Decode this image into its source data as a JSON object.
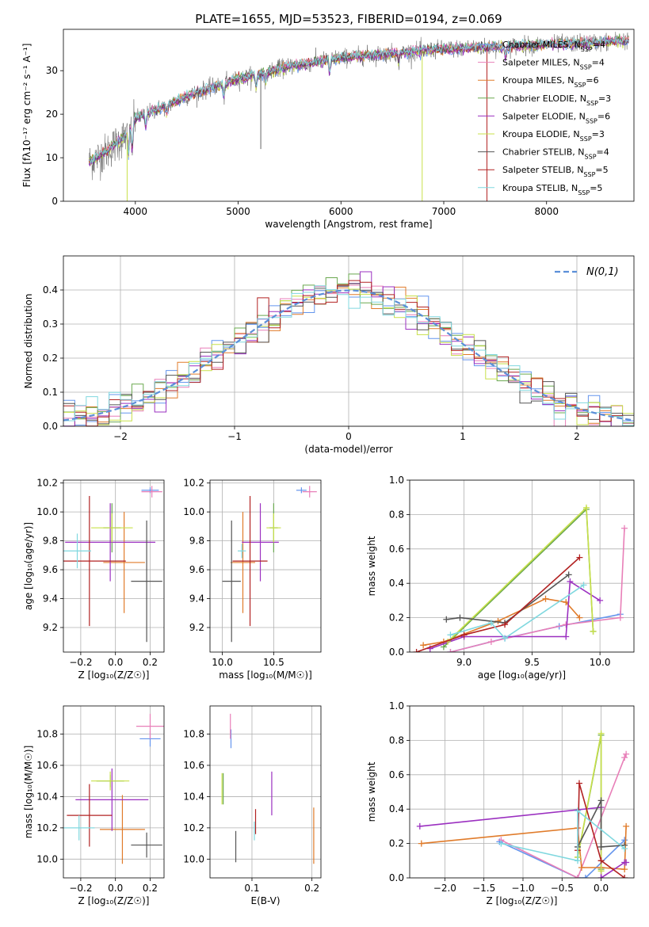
{
  "figure_title": "PLATE=1655, MJD=53523, FIBERID=0194, z=0.069",
  "colors": {
    "Chabrier MILES": "#6495ed",
    "Salpeter MILES": "#e87fb8",
    "Kroupa MILES": "#e07b2a",
    "Chabrier ELODIE": "#6aa84f",
    "Salpeter ELODIE": "#9b30c0",
    "Kroupa ELODIE": "#c8e04a",
    "Chabrier STELIB": "#555555",
    "Salpeter STELIB": "#b22222",
    "Kroupa STELIB": "#80d8df",
    "gaussian": "#5b8fd8"
  },
  "chart_data": [
    {
      "id": "spectrum",
      "type": "line",
      "xlabel": "wavelength [Angstrom, rest frame]",
      "ylabel": "Flux [fλ10⁻¹⁷ erg cm⁻² s⁻¹ A⁻¹]",
      "xlim": [
        3300,
        8850
      ],
      "ylim": [
        0,
        39.5
      ],
      "xticks": [
        "4000",
        "5000",
        "6000",
        "7000",
        "8000"
      ],
      "yticks": [
        "0",
        "10",
        "20",
        "30"
      ],
      "legend": "top-right",
      "legend_entries": [
        {
          "model": "Chabrier MILES",
          "nssp": "4"
        },
        {
          "model": "Salpeter MILES",
          "nssp": "4"
        },
        {
          "model": "Kroupa MILES",
          "nssp": "6"
        },
        {
          "model": "Chabrier ELODIE",
          "nssp": "3"
        },
        {
          "model": "Salpeter ELODIE",
          "nssp": "6"
        },
        {
          "model": "Kroupa ELODIE",
          "nssp": "3"
        },
        {
          "model": "Chabrier STELIB",
          "nssp": "4"
        },
        {
          "model": "Salpeter STELIB",
          "nssp": "5"
        },
        {
          "model": "Kroupa STELIB",
          "nssp": "5"
        }
      ],
      "continuum": [
        [
          3550,
          9
        ],
        [
          3700,
          11
        ],
        [
          3900,
          15
        ],
        [
          4000,
          19
        ],
        [
          4300,
          22
        ],
        [
          4600,
          25
        ],
        [
          5000,
          28
        ],
        [
          5500,
          31
        ],
        [
          6000,
          33
        ],
        [
          6500,
          34
        ],
        [
          7000,
          35
        ],
        [
          7500,
          35.5
        ],
        [
          8000,
          36
        ],
        [
          8500,
          36.5
        ],
        [
          8800,
          37
        ]
      ]
    },
    {
      "id": "residuals",
      "type": "histogram",
      "xlabel": "(data-model)/error",
      "ylabel": "Normed distribution",
      "xlim": [
        -2.5,
        2.5
      ],
      "ylim": [
        0,
        0.5
      ],
      "xticks": [
        "−2",
        "−1",
        "0",
        "1",
        "2"
      ],
      "yticks": [
        "0.0",
        "0.1",
        "0.2",
        "0.3",
        "0.4"
      ],
      "legend": "top-right",
      "gaussian_label": "N(0,1)",
      "grid": true
    },
    {
      "id": "age_vs_Z",
      "type": "scatter",
      "xlabel": "Z [log₁₀(Z/Z☉)]",
      "ylabel": "age  [log₁₀(age/yr)]",
      "xlim": [
        -0.3,
        0.28
      ],
      "ylim": [
        9.03,
        10.22
      ],
      "xticks": [
        "−0.2",
        "0.0",
        "0.2"
      ],
      "yticks": [
        "9.2",
        "9.4",
        "9.6",
        "9.8",
        "10.0",
        "10.2"
      ],
      "points": [
        {
          "m": "Chabrier MILES",
          "x": 0.2,
          "xe": 0.05,
          "y": 10.15,
          "ye": 0.02
        },
        {
          "m": "Salpeter MILES",
          "x": 0.21,
          "xe": 0.06,
          "y": 10.14,
          "ye": 0.04
        },
        {
          "m": "Kroupa MILES",
          "x": 0.05,
          "xe": 0.12,
          "y": 9.65,
          "ye": 0.35
        },
        {
          "m": "Chabrier ELODIE",
          "x": -0.02,
          "xe": 0.05,
          "y": 9.89,
          "ye": 0.17
        },
        {
          "m": "Salpeter ELODIE",
          "x": -0.03,
          "xe": 0.26,
          "y": 9.79,
          "ye": 0.27
        },
        {
          "m": "Kroupa ELODIE",
          "x": -0.02,
          "xe": 0.12,
          "y": 9.89,
          "ye": 0.1
        },
        {
          "m": "Chabrier STELIB",
          "x": 0.18,
          "xe": 0.09,
          "y": 9.52,
          "ye": 0.42
        },
        {
          "m": "Salpeter STELIB",
          "x": -0.15,
          "xe": 0.21,
          "y": 9.66,
          "ye": 0.45
        },
        {
          "m": "Kroupa STELIB",
          "x": -0.22,
          "xe": 0.08,
          "y": 9.73,
          "ye": 0.12
        }
      ]
    },
    {
      "id": "age_vs_mass",
      "type": "scatter",
      "xlabel": "mass [log₁₀(M/M☉)]",
      "ylabel": "",
      "xlim": [
        9.88,
        10.96
      ],
      "ylim": [
        9.03,
        10.22
      ],
      "xticks": [
        "10.0",
        "10.5"
      ],
      "yticks": [
        "9.2",
        "9.4",
        "9.6",
        "9.8",
        "10.0",
        "10.2"
      ],
      "points": [
        {
          "m": "Chabrier MILES",
          "x": 10.77,
          "xe": 0.05,
          "y": 10.15,
          "ye": 0.02
        },
        {
          "m": "Salpeter MILES",
          "x": 10.85,
          "xe": 0.07,
          "y": 10.14,
          "ye": 0.04
        },
        {
          "m": "Kroupa MILES",
          "x": 10.2,
          "xe": 0.12,
          "y": 9.65,
          "ye": 0.35
        },
        {
          "m": "Chabrier ELODIE",
          "x": 10.5,
          "xe": 0.04,
          "y": 9.89,
          "ye": 0.17
        },
        {
          "m": "Salpeter ELODIE",
          "x": 10.37,
          "xe": 0.18,
          "y": 9.79,
          "ye": 0.27
        },
        {
          "m": "Kroupa ELODIE",
          "x": 10.5,
          "xe": 0.07,
          "y": 9.89,
          "ye": 0.1
        },
        {
          "m": "Chabrier STELIB",
          "x": 10.09,
          "xe": 0.09,
          "y": 9.52,
          "ye": 0.42
        },
        {
          "m": "Salpeter STELIB",
          "x": 10.27,
          "xe": 0.17,
          "y": 9.66,
          "ye": 0.45
        },
        {
          "m": "Kroupa STELIB",
          "x": 10.19,
          "xe": 0.04,
          "y": 9.73,
          "ye": 0.05
        }
      ]
    },
    {
      "id": "weight_vs_age",
      "type": "line",
      "xlabel": "age  [log₁₀(age/yr)]",
      "ylabel": "mass weight",
      "xlim": [
        8.6,
        10.25
      ],
      "ylim": [
        0,
        1.0
      ],
      "xticks": [
        "9.0",
        "9.5",
        "10.0"
      ],
      "yticks": [
        "0.0",
        "0.2",
        "0.4",
        "0.6",
        "0.8",
        "1.0"
      ],
      "grid": true,
      "series": [
        {
          "m": "Chabrier MILES",
          "x": [
            8.9,
            9.3,
            9.7,
            10.15
          ],
          "y": [
            0.0,
            0.08,
            0.15,
            0.22
          ]
        },
        {
          "m": "Salpeter MILES",
          "x": [
            8.9,
            9.2,
            9.75,
            10.15,
            10.18
          ],
          "y": [
            0.0,
            0.06,
            0.16,
            0.2,
            0.72
          ]
        },
        {
          "m": "Kroupa MILES",
          "x": [
            8.7,
            8.85,
            9.25,
            9.6,
            9.75,
            9.85
          ],
          "y": [
            0.04,
            0.06,
            0.18,
            0.31,
            0.29,
            0.2
          ]
        },
        {
          "m": "Chabrier ELODIE",
          "x": [
            8.85,
            9.9,
            9.95
          ],
          "y": [
            0.03,
            0.83,
            0.12
          ]
        },
        {
          "m": "Salpeter ELODIE",
          "x": [
            8.75,
            9.0,
            9.75,
            9.78,
            10.0
          ],
          "y": [
            0.02,
            0.09,
            0.09,
            0.41,
            0.3
          ]
        },
        {
          "m": "Kroupa ELODIE",
          "x": [
            8.88,
            9.9,
            9.95
          ],
          "y": [
            0.06,
            0.84,
            0.12
          ]
        },
        {
          "m": "Chabrier STELIB",
          "x": [
            8.87,
            8.97,
            9.3,
            9.77
          ],
          "y": [
            0.19,
            0.2,
            0.17,
            0.45
          ]
        },
        {
          "m": "Salpeter STELIB",
          "x": [
            8.65,
            9.0,
            9.3,
            9.85
          ],
          "y": [
            0.0,
            0.1,
            0.16,
            0.55
          ]
        },
        {
          "m": "Kroupa STELIB",
          "x": [
            8.9,
            9.2,
            9.3,
            9.88
          ],
          "y": [
            0.1,
            0.17,
            0.08,
            0.39
          ]
        }
      ]
    },
    {
      "id": "mass_vs_Z",
      "type": "scatter",
      "xlabel": "Z [log₁₀(Z/Z☉)]",
      "ylabel": "mass [log₁₀(M/M☉)]",
      "xlim": [
        -0.3,
        0.28
      ],
      "ylim": [
        9.88,
        10.98
      ],
      "xticks": [
        "−0.2",
        "0.0",
        "0.2"
      ],
      "yticks": [
        "10.0",
        "10.2",
        "10.4",
        "10.6",
        "10.8"
      ],
      "points": [
        {
          "m": "Chabrier MILES",
          "x": 0.2,
          "xe": 0.06,
          "y": 10.77,
          "ye": 0.05
        },
        {
          "m": "Salpeter MILES",
          "x": 0.2,
          "xe": 0.08,
          "y": 10.85,
          "ye": 0.08
        },
        {
          "m": "Kroupa MILES",
          "x": 0.04,
          "xe": 0.13,
          "y": 10.19,
          "ye": 0.22
        },
        {
          "m": "Chabrier ELODIE",
          "x": -0.03,
          "xe": 0.08,
          "y": 10.5,
          "ye": 0.04
        },
        {
          "m": "Salpeter ELODIE",
          "x": -0.02,
          "xe": 0.21,
          "y": 10.38,
          "ye": 0.2
        },
        {
          "m": "Kroupa ELODIE",
          "x": -0.03,
          "xe": 0.11,
          "y": 10.5,
          "ye": 0.06
        },
        {
          "m": "Chabrier STELIB",
          "x": 0.18,
          "xe": 0.09,
          "y": 10.09,
          "ye": 0.08
        },
        {
          "m": "Salpeter STELIB",
          "x": -0.15,
          "xe": 0.13,
          "y": 10.28,
          "ye": 0.2
        },
        {
          "m": "Kroupa STELIB",
          "x": -0.21,
          "xe": 0.09,
          "y": 10.2,
          "ye": 0.08
        }
      ]
    },
    {
      "id": "mass_vs_ebv",
      "type": "scatter",
      "xlabel": "E(B-V)",
      "ylabel": "",
      "xlim": [
        0.03,
        0.215
      ],
      "ylim": [
        9.88,
        10.98
      ],
      "xticks": [
        "0.1",
        "0.2"
      ],
      "yticks": [
        "10.0",
        "10.2",
        "10.4",
        "10.6",
        "10.8"
      ],
      "points": [
        {
          "m": "Chabrier MILES",
          "x": 0.065,
          "y": 10.77,
          "ye": 0.06
        },
        {
          "m": "Salpeter MILES",
          "x": 0.064,
          "y": 10.85,
          "ye": 0.08
        },
        {
          "m": "Kroupa MILES",
          "x": 0.203,
          "y": 10.15,
          "ye": 0.18
        },
        {
          "m": "Chabrier ELODIE",
          "x": 0.052,
          "y": 10.45,
          "ye": 0.1
        },
        {
          "m": "Salpeter ELODIE",
          "x": 0.133,
          "y": 10.42,
          "ye": 0.14
        },
        {
          "m": "Kroupa ELODIE",
          "x": 0.05,
          "y": 10.45,
          "ye": 0.1
        },
        {
          "m": "Chabrier STELIB",
          "x": 0.073,
          "y": 10.08,
          "ye": 0.1
        },
        {
          "m": "Salpeter STELIB",
          "x": 0.106,
          "y": 10.24,
          "ye": 0.08
        },
        {
          "m": "Kroupa STELIB",
          "x": 0.104,
          "y": 10.18,
          "ye": 0.06
        }
      ]
    },
    {
      "id": "weight_vs_Z",
      "type": "line",
      "xlabel": "Z [log₁₀(Z/Z☉)]",
      "ylabel": "mass weight",
      "xlim": [
        -2.45,
        0.42
      ],
      "ylim": [
        0,
        1.0
      ],
      "xticks": [
        "−2.0",
        "−1.5",
        "−1.0",
        "−0.5",
        "0.0"
      ],
      "yticks": [
        "0.0",
        "0.2",
        "0.4",
        "0.6",
        "0.8",
        "1.0"
      ],
      "grid": true,
      "series": [
        {
          "m": "Chabrier MILES",
          "x": [
            -1.3,
            -0.3,
            -0.2,
            0.3
          ],
          "y": [
            0.21,
            0.0,
            0.0,
            0.22
          ]
        },
        {
          "m": "Salpeter MILES",
          "x": [
            -1.28,
            -0.3,
            0.3,
            0.32
          ],
          "y": [
            0.22,
            0.0,
            0.7,
            0.72
          ]
        },
        {
          "m": "Kroupa MILES",
          "x": [
            -2.3,
            -0.3,
            -0.25,
            0.0,
            0.3,
            0.32
          ],
          "y": [
            0.2,
            0.29,
            0.06,
            0.06,
            0.05,
            0.3
          ]
        },
        {
          "m": "Chabrier ELODIE",
          "x": [
            -0.3,
            0.0,
            0.0
          ],
          "y": [
            0.12,
            0.83,
            0.05
          ]
        },
        {
          "m": "Salpeter ELODIE",
          "x": [
            -2.32,
            0.0,
            0.0,
            0.3,
            0.32
          ],
          "y": [
            0.3,
            0.41,
            0.0,
            0.09,
            0.09
          ]
        },
        {
          "m": "Kroupa ELODIE",
          "x": [
            -0.3,
            0.0,
            0.0
          ],
          "y": [
            0.12,
            0.84,
            0.04
          ]
        },
        {
          "m": "Chabrier STELIB",
          "x": [
            -0.3,
            0.0,
            0.0,
            0.3
          ],
          "y": [
            0.18,
            0.45,
            0.18,
            0.19
          ]
        },
        {
          "m": "Salpeter STELIB",
          "x": [
            -0.3,
            -0.28,
            0.0,
            0.3
          ],
          "y": [
            0.16,
            0.55,
            0.1,
            0.0
          ]
        },
        {
          "m": "Kroupa STELIB",
          "x": [
            -1.28,
            -0.3,
            -0.3,
            0.3
          ],
          "y": [
            0.2,
            0.1,
            0.39,
            0.17
          ]
        }
      ]
    }
  ]
}
